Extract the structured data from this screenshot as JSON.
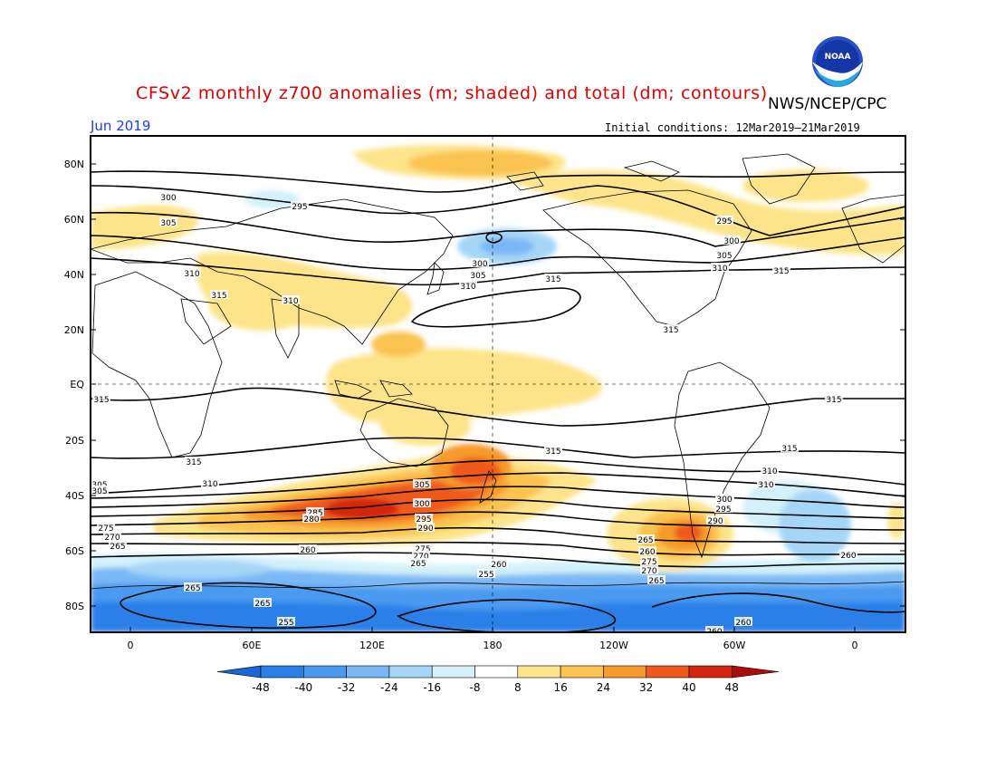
{
  "title": "CFSv2 monthly z700 anomalies (m; shaded) and total (dm; contours)",
  "credit": "NWS/NCEP/CPC",
  "logo_text": "NOAA",
  "month": "Jun 2019",
  "initial_conditions": "Initial conditions: 12Mar2019–21Mar2019",
  "lat_ticks": [
    "80N",
    "60N",
    "40N",
    "20N",
    "EQ",
    "20S",
    "40S",
    "60S",
    "80S"
  ],
  "lon_ticks": [
    "0",
    "60E",
    "120E",
    "180",
    "120W",
    "60W",
    "0"
  ],
  "colorbar": {
    "labels": [
      "-48",
      "-40",
      "-32",
      "-24",
      "-16",
      "-8",
      "8",
      "16",
      "24",
      "32",
      "40",
      "48"
    ],
    "colors": [
      "#1966d8",
      "#2b80e8",
      "#4a9af0",
      "#7ab8f5",
      "#a6d6f7",
      "#d2f1f9",
      "#ffffff",
      "#fde48a",
      "#fbc34f",
      "#f79a2c",
      "#ef5a1c",
      "#d4260f",
      "#a80c0c"
    ]
  },
  "contour_labels": [
    {
      "text": "300"
    },
    {
      "text": "295"
    },
    {
      "text": "305"
    },
    {
      "text": "310"
    },
    {
      "text": "315"
    },
    {
      "text": "310"
    },
    {
      "text": "300"
    },
    {
      "text": "305"
    },
    {
      "text": "310"
    },
    {
      "text": "315"
    },
    {
      "text": "295"
    },
    {
      "text": "300"
    },
    {
      "text": "305"
    },
    {
      "text": "310"
    },
    {
      "text": "315"
    },
    {
      "text": "315"
    },
    {
      "text": "315"
    },
    {
      "text": "315"
    },
    {
      "text": "315"
    },
    {
      "text": "315"
    },
    {
      "text": "310"
    },
    {
      "text": "310"
    },
    {
      "text": "315"
    },
    {
      "text": "310"
    },
    {
      "text": "305"
    },
    {
      "text": "305"
    },
    {
      "text": "300"
    },
    {
      "text": "295"
    },
    {
      "text": "290"
    },
    {
      "text": "285"
    },
    {
      "text": "280"
    },
    {
      "text": "275"
    },
    {
      "text": "270"
    },
    {
      "text": "265"
    },
    {
      "text": "305"
    },
    {
      "text": "300"
    },
    {
      "text": "295"
    },
    {
      "text": "290"
    },
    {
      "text": "275"
    },
    {
      "text": "270"
    },
    {
      "text": "265"
    },
    {
      "text": "260"
    },
    {
      "text": "300"
    },
    {
      "text": "295"
    },
    {
      "text": "290"
    },
    {
      "text": "265"
    },
    {
      "text": "260"
    },
    {
      "text": "275"
    },
    {
      "text": "270"
    },
    {
      "text": "265"
    },
    {
      "text": "260"
    },
    {
      "text": "255"
    },
    {
      "text": "260"
    },
    {
      "text": "265"
    },
    {
      "text": "265"
    },
    {
      "text": "255"
    },
    {
      "text": "260"
    },
    {
      "text": "260"
    }
  ]
}
